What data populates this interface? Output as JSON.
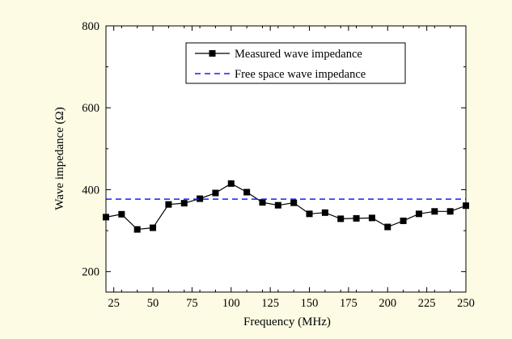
{
  "chart_data": {
    "type": "line",
    "xlabel": "Frequency (MHz)",
    "ylabel": "Wave impedance (Ω)",
    "xlim": [
      20,
      250
    ],
    "ylim": [
      150,
      800
    ],
    "x_ticks": [
      25,
      50,
      75,
      100,
      125,
      150,
      175,
      200,
      225,
      250
    ],
    "x_minor_ticks": [
      30,
      40,
      60,
      70,
      80,
      90,
      110,
      120,
      130,
      140,
      160,
      170,
      180,
      190,
      210,
      220,
      230,
      240
    ],
    "x_tick_labels": [
      "25",
      "50",
      "75",
      "100",
      "125",
      "150",
      "175",
      "200",
      "225",
      "250"
    ],
    "y_ticks": [
      200,
      400,
      600,
      800
    ],
    "y_tick_labels": [
      "200",
      "400",
      "600",
      "800"
    ],
    "legend_position": "top-right",
    "grid": false,
    "series": [
      {
        "name": "Measured wave impedance",
        "style": "solid-square-markers",
        "color": "#000000",
        "x": [
          20,
          30,
          40,
          50,
          60,
          70,
          80,
          90,
          100,
          110,
          120,
          130,
          140,
          150,
          160,
          170,
          180,
          190,
          200,
          210,
          220,
          230,
          240,
          250
        ],
        "y": [
          333,
          340,
          303,
          307,
          364,
          367,
          378,
          392,
          415,
          394,
          369,
          362,
          368,
          341,
          344,
          329,
          330,
          331,
          309,
          324,
          341,
          347,
          347,
          361
        ]
      },
      {
        "name": "Free space wave impedance",
        "style": "dashed",
        "color": "#1a1aff",
        "x": [
          20,
          250
        ],
        "y": [
          377,
          377
        ]
      }
    ]
  }
}
